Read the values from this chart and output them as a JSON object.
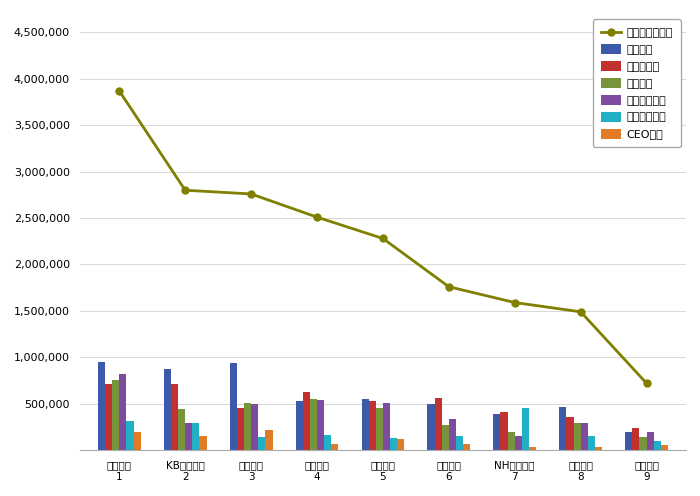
{
  "categories_line1": [
    "현대카드",
    "KB국민카드",
    "신한카드",
    "삼성카드",
    "롯데카드",
    "하나카드",
    "NH농협카드",
    "우리카드",
    "비씨카드"
  ],
  "categories_line2": [
    "1",
    "2",
    "3",
    "4",
    "5",
    "6",
    "7",
    "8",
    "9"
  ],
  "참여지수": [
    950000,
    870000,
    940000,
    530000,
    555000,
    500000,
    390000,
    460000,
    190000
  ],
  "미디어지수": [
    710000,
    710000,
    450000,
    630000,
    530000,
    560000,
    415000,
    355000,
    240000
  ],
  "소통지수": [
    760000,
    440000,
    510000,
    550000,
    450000,
    275000,
    200000,
    290000,
    140000
  ],
  "커뮤니티지수": [
    820000,
    295000,
    500000,
    545000,
    510000,
    340000,
    155000,
    290000,
    200000
  ],
  "사회공헌지수": [
    310000,
    295000,
    145000,
    160000,
    130000,
    155000,
    450000,
    155000,
    95000
  ],
  "CEO지수": [
    200000,
    155000,
    215000,
    65000,
    115000,
    70000,
    35000,
    35000,
    55000
  ],
  "브랜드평판지수": [
    3870000,
    2800000,
    2760000,
    2510000,
    2280000,
    1760000,
    1590000,
    1490000,
    720000
  ],
  "bar_colors": {
    "참여지수": "#3d5aaa",
    "미디어지수": "#c0312f",
    "소통지수": "#76943c",
    "커뮤니티지수": "#7f4b9e",
    "사회공헌지수": "#22b0c7",
    "CEO지수": "#e07b27"
  },
  "line_color": "#808000",
  "ylim": [
    0,
    4700000
  ],
  "yticks": [
    0,
    500000,
    1000000,
    1500000,
    2000000,
    2500000,
    3000000,
    3500000,
    4000000,
    4500000
  ],
  "legend_labels": [
    "참여지수",
    "미디어지수",
    "소통지수",
    "커뮤니티지수",
    "사회공헌지수",
    "CEO지수",
    "브랜드평판지수"
  ],
  "bg_color": "#ffffff",
  "grid_color": "#d8d8d8"
}
